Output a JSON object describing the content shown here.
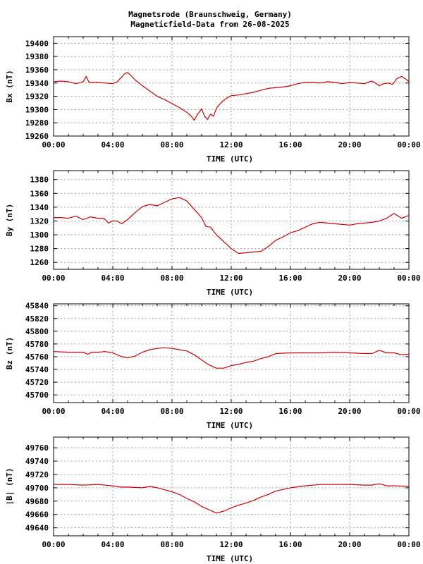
{
  "title_line1": "Magnetsrode (Braunschweig, Germany)",
  "title_line2": "Magneticfield-Data from 26-08-2025",
  "colors": {
    "series": "#cc0000",
    "grid": "#a0a0a0",
    "axis": "#000000"
  },
  "chart_data": [
    {
      "type": "line",
      "title": "",
      "ylabel": "Bx (nT)",
      "xlabel": "TIME (UTC)",
      "xticks": [
        "00:00",
        "04:00",
        "08:00",
        "12:00",
        "16:00",
        "20:00",
        "00:00"
      ],
      "xlim": [
        0,
        24
      ],
      "ylim": [
        19260,
        19410
      ],
      "yticks": [
        19260,
        19280,
        19300,
        19320,
        19340,
        19360,
        19380,
        19400
      ],
      "grid": true,
      "series": [
        {
          "x": [
            0,
            0.5,
            1,
            1.5,
            2,
            2.2,
            2.4,
            2.7,
            3,
            3.5,
            4,
            4.3,
            4.6,
            4.8,
            5,
            5.2,
            5.5,
            6,
            6.5,
            7,
            7.5,
            8,
            8.5,
            9,
            9.3,
            9.5,
            9.7,
            10,
            10.2,
            10.4,
            10.6,
            10.8,
            11,
            11.3,
            11.6,
            12,
            12.5,
            13,
            13.5,
            14,
            14.5,
            15,
            15.5,
            16,
            16.5,
            17,
            17.5,
            18,
            18.5,
            19,
            19.5,
            20,
            20.5,
            21,
            21.5,
            21.8,
            22,
            22.3,
            22.6,
            22.9,
            23.2,
            23.5,
            23.8,
            24
          ],
          "y": [
            19342,
            19343,
            19342,
            19339,
            19342,
            19350,
            19341,
            19341,
            19341,
            19340,
            19339,
            19342,
            19349,
            19354,
            19356,
            19352,
            19345,
            19336,
            19328,
            19320,
            19315,
            19309,
            19303,
            19296,
            19290,
            19284,
            19292,
            19301,
            19290,
            19285,
            19293,
            19290,
            19302,
            19310,
            19316,
            19321,
            19322,
            19324,
            19326,
            19329,
            19332,
            19333,
            19334,
            19336,
            19339,
            19341,
            19341,
            19340,
            19342,
            19341,
            19339,
            19341,
            19340,
            19339,
            19343,
            19339,
            19336,
            19339,
            19340,
            19338,
            19347,
            19350,
            19346,
            19342
          ]
        }
      ]
    },
    {
      "type": "line",
      "title": "",
      "ylabel": "By (nT)",
      "xlabel": "TIME (UTC)",
      "xticks": [
        "00:00",
        "04:00",
        "08:00",
        "12:00",
        "16:00",
        "20:00",
        "00:00"
      ],
      "xlim": [
        0,
        24
      ],
      "ylim": [
        1250,
        1393
      ],
      "yticks": [
        1260,
        1280,
        1300,
        1320,
        1340,
        1360,
        1380
      ],
      "grid": true,
      "series": [
        {
          "x": [
            0,
            0.5,
            1,
            1.5,
            2,
            2.5,
            3,
            3.4,
            3.7,
            4,
            4.3,
            4.6,
            5,
            5.5,
            6,
            6.5,
            7,
            7.5,
            8,
            8.5,
            9,
            9.5,
            10,
            10.3,
            10.6,
            11,
            11.5,
            12,
            12.5,
            13,
            13.5,
            14,
            14.5,
            15,
            15.5,
            16,
            16.5,
            17,
            17.5,
            18,
            18.5,
            19,
            19.5,
            20,
            20.5,
            21,
            21.5,
            22,
            22.5,
            23,
            23.5,
            24
          ],
          "y": [
            1325,
            1325,
            1324,
            1327,
            1322,
            1326,
            1324,
            1324,
            1317,
            1320,
            1320,
            1316,
            1322,
            1332,
            1341,
            1344,
            1342,
            1347,
            1352,
            1354,
            1349,
            1337,
            1325,
            1312,
            1311,
            1300,
            1290,
            1280,
            1273,
            1274,
            1275,
            1276,
            1283,
            1292,
            1297,
            1303,
            1306,
            1311,
            1316,
            1318,
            1317,
            1316,
            1315,
            1314,
            1316,
            1317,
            1318,
            1320,
            1324,
            1331,
            1324,
            1328
          ]
        }
      ]
    },
    {
      "type": "line",
      "title": "",
      "ylabel": "Bz (nT)",
      "xlabel": "TIME (UTC)",
      "xticks": [
        "00:00",
        "04:00",
        "08:00",
        "12:00",
        "16:00",
        "20:00",
        "00:00"
      ],
      "xlim": [
        0,
        24
      ],
      "ylim": [
        45688,
        45843
      ],
      "yticks": [
        45700,
        45720,
        45740,
        45760,
        45780,
        45800,
        45820,
        45840
      ],
      "grid": true,
      "series": [
        {
          "x": [
            0,
            1,
            2,
            2.3,
            2.6,
            3,
            3.5,
            4,
            4.5,
            5,
            5.5,
            6,
            6.5,
            7,
            7.5,
            8,
            8.5,
            9,
            9.5,
            10,
            10.3,
            10.6,
            11,
            11.5,
            12,
            12.5,
            13,
            13.5,
            14,
            14.5,
            15,
            16,
            17,
            18,
            19,
            20,
            21,
            21.5,
            22,
            22.5,
            23,
            23.5,
            24
          ],
          "y": [
            45768,
            45767,
            45767,
            45764,
            45767,
            45767,
            45768,
            45766,
            45761,
            45758,
            45761,
            45767,
            45771,
            45773,
            45774,
            45773,
            45771,
            45769,
            45763,
            45755,
            45750,
            45746,
            45742,
            45742,
            45746,
            45748,
            45751,
            45753,
            45757,
            45760,
            45765,
            45766,
            45766,
            45766,
            45767,
            45766,
            45765,
            45765,
            45770,
            45766,
            45766,
            45763,
            45764
          ]
        }
      ]
    },
    {
      "type": "line",
      "title": "",
      "ylabel": "|B| (nT)",
      "xlabel": "TIME (UTC)",
      "xticks": [
        "00:00",
        "04:00",
        "08:00",
        "12:00",
        "16:00",
        "20:00",
        "00:00"
      ],
      "xlim": [
        0,
        24
      ],
      "ylim": [
        49628,
        49776
      ],
      "yticks": [
        49640,
        49660,
        49680,
        49700,
        49720,
        49740,
        49760
      ],
      "grid": true,
      "series": [
        {
          "x": [
            0,
            1,
            2,
            3,
            4,
            4.5,
            5,
            6,
            6.5,
            7,
            7.5,
            8,
            8.5,
            9,
            9.5,
            10,
            10.5,
            11,
            11.5,
            12,
            12.5,
            13,
            13.5,
            14,
            14.5,
            15,
            16,
            17,
            18,
            19,
            20,
            21,
            21.5,
            22,
            22.5,
            23,
            24
          ],
          "y": [
            49705,
            49705,
            49704,
            49705,
            49703,
            49701,
            49701,
            49700,
            49702,
            49700,
            49697,
            49694,
            49690,
            49684,
            49679,
            49672,
            49667,
            49662,
            49665,
            49670,
            49674,
            49677,
            49681,
            49686,
            49690,
            49695,
            49700,
            49703,
            49705,
            49705,
            49705,
            49704,
            49704,
            49706,
            49703,
            49703,
            49702
          ]
        }
      ]
    }
  ]
}
